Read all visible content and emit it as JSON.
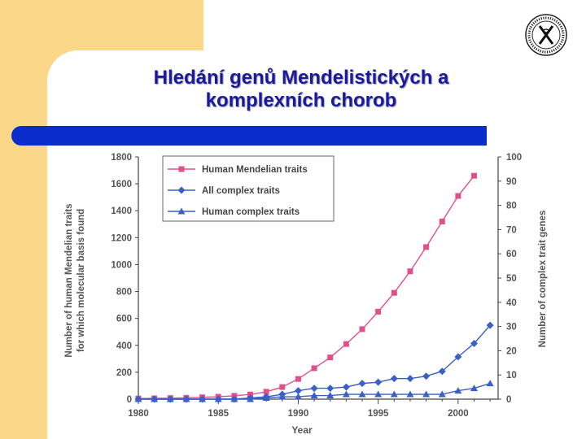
{
  "slide": {
    "title_line1": "Hledání genů Mendelistických a",
    "title_line2": "komplexních chorob"
  },
  "colors": {
    "accent_yellow": "#fbd889",
    "bar_blue": "#0a2ccc",
    "title_blue": "#1a1aa0",
    "series_pink": "#e0508c",
    "series_blue": "#3a5fc8"
  },
  "chart_data": {
    "type": "line",
    "title": "",
    "xlabel": "Year",
    "ylabel_left_line1": "Number of human Mendelian traits",
    "ylabel_left_line2": "for which molecular basis found",
    "ylabel_right": "Number of complex trait genes",
    "xlim": [
      1980,
      2002.5
    ],
    "ylim_left": [
      0,
      1800
    ],
    "ylim_right": [
      0,
      100
    ],
    "x_ticks": [
      1980,
      1985,
      1990,
      1995,
      2000
    ],
    "y_left_ticks": [
      0,
      200,
      400,
      600,
      800,
      1000,
      1200,
      1400,
      1600,
      1800
    ],
    "y_right_ticks": [
      0,
      10,
      20,
      30,
      40,
      50,
      60,
      70,
      80,
      90,
      100
    ],
    "legend_position": "top-left",
    "series": [
      {
        "name": "Human Mendelian traits",
        "axis": "left",
        "marker": "square",
        "color": "#e0508c",
        "x": [
          1980,
          1981,
          1982,
          1983,
          1984,
          1985,
          1986,
          1987,
          1988,
          1989,
          1990,
          1991,
          1992,
          1993,
          1994,
          1995,
          1996,
          1997,
          1998,
          1999,
          2000,
          2001
        ],
        "values": [
          5,
          6,
          8,
          10,
          14,
          18,
          25,
          35,
          55,
          90,
          150,
          230,
          310,
          410,
          520,
          650,
          790,
          950,
          1130,
          1320,
          1510,
          1660
        ]
      },
      {
        "name": "All complex traits",
        "axis": "right",
        "marker": "diamond",
        "color": "#3a5fc8",
        "x": [
          1980,
          1981,
          1982,
          1983,
          1984,
          1985,
          1986,
          1987,
          1988,
          1989,
          1990,
          1991,
          1992,
          1993,
          1994,
          1995,
          1996,
          1997,
          1998,
          1999,
          2000,
          2001,
          2002
        ],
        "values": [
          0,
          0,
          0,
          0,
          0,
          0,
          0,
          0.5,
          1,
          2,
          3.5,
          4.5,
          4.5,
          5,
          6.5,
          7,
          8.5,
          8.5,
          9.5,
          11.5,
          17.5,
          23,
          30.5
        ]
      },
      {
        "name": "Human complex traits",
        "axis": "right",
        "marker": "triangle",
        "color": "#3a5fc8",
        "x": [
          1980,
          1981,
          1982,
          1983,
          1984,
          1985,
          1986,
          1987,
          1988,
          1989,
          1990,
          1991,
          1992,
          1993,
          1994,
          1995,
          1996,
          1997,
          1998,
          1999,
          2000,
          2001,
          2002
        ],
        "values": [
          0,
          0,
          0,
          0,
          0,
          0,
          0,
          0,
          0.5,
          1,
          1,
          1.5,
          1.5,
          2,
          2,
          2,
          2,
          2,
          2,
          2,
          3.5,
          4.5,
          6.5
        ]
      }
    ]
  }
}
